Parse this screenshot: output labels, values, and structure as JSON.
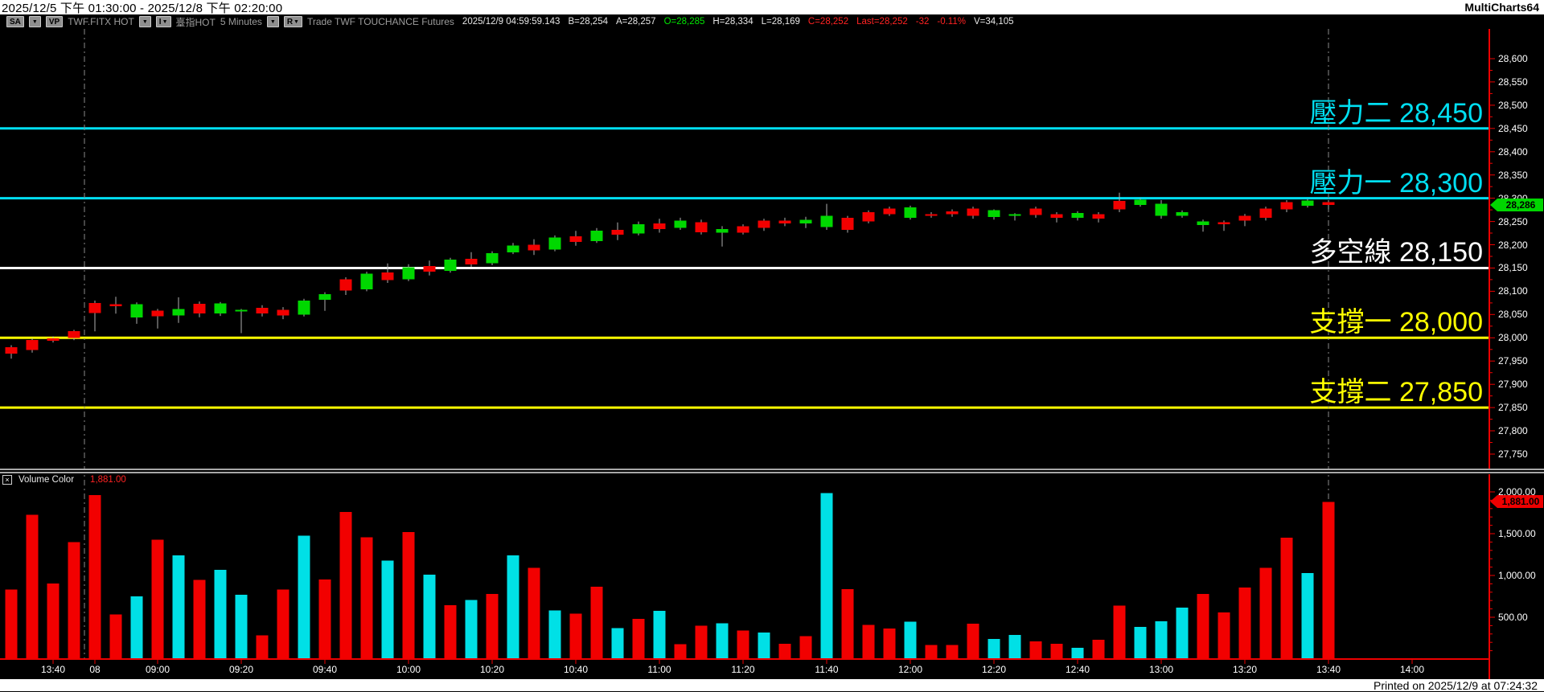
{
  "title_bar": {
    "date_range": "2025/12/5 下午 01:30:00 - 2025/12/8 下午 02:20:00",
    "app_name": "MultiCharts64"
  },
  "toolbar": {
    "sa_button": "SA",
    "vp_button": "VP",
    "symbol": "TWF.FITX HOT",
    "interval_button": "I",
    "series_name": "臺指HOT",
    "interval_text": "5 Minutes",
    "r_button": "R",
    "trade_label": "Trade  TWF  TOUCHANCE  Futures",
    "quote": {
      "datetime": "2025/12/9  04:59:59.143",
      "bid": "B=28,254",
      "ask": "A=28,257",
      "open": "O=28,285",
      "high": "H=28,334",
      "low": "L=28,169",
      "close": "C=28,252",
      "last": "Last=28,252",
      "change": "-32",
      "change_pct": "-0.11%",
      "volume": "V=34,105"
    }
  },
  "price_pane": {
    "levels": [
      {
        "name": "resistance-2",
        "text": "壓力二 28,450",
        "value": 28450,
        "color": "#00dff2"
      },
      {
        "name": "resistance-1",
        "text": "壓力一 28,300",
        "value": 28300,
        "color": "#00dff2"
      },
      {
        "name": "bull-bear-line",
        "text": "多空線 28,150",
        "value": 28150,
        "color": "#ffffff"
      },
      {
        "name": "support-1",
        "text": "支撐一 28,000",
        "value": 28000,
        "color": "#ffff00"
      },
      {
        "name": "support-2",
        "text": "支撐二 27,850",
        "value": 27850,
        "color": "#ffff00"
      }
    ],
    "last_price_badge": {
      "text": "28,286",
      "value": 28286,
      "color": "#00d600"
    },
    "axis_labels": [
      {
        "text": "28,600",
        "value": 28600
      },
      {
        "text": "28,550",
        "value": 28550
      },
      {
        "text": "28,500",
        "value": 28500
      },
      {
        "text": "28,450",
        "value": 28450
      },
      {
        "text": "28,400",
        "value": 28400
      },
      {
        "text": "28,350",
        "value": 28350
      },
      {
        "text": "28,300",
        "value": 28300
      },
      {
        "text": "28,250",
        "value": 28250
      },
      {
        "text": "28,200",
        "value": 28200
      },
      {
        "text": "28,150",
        "value": 28150
      },
      {
        "text": "28,100",
        "value": 28100
      },
      {
        "text": "28,050",
        "value": 28050
      },
      {
        "text": "28,000",
        "value": 28000
      },
      {
        "text": "27,950",
        "value": 27950
      },
      {
        "text": "27,900",
        "value": 27900
      },
      {
        "text": "27,850",
        "value": 27850
      },
      {
        "text": "27,800",
        "value": 27800
      },
      {
        "text": "27,750",
        "value": 27750
      }
    ]
  },
  "volume_pane": {
    "close_icon": "×",
    "title": "Volume Color",
    "value_text": "1,881.00",
    "badge": {
      "text": "1,881.00",
      "value": 1881,
      "color": "#ee0000"
    },
    "axis_labels": [
      {
        "text": "2,000.00",
        "value": 2000
      },
      {
        "text": "1,500.00",
        "value": 1500
      },
      {
        "text": "1,000.00",
        "value": 1000
      },
      {
        "text": "500.00",
        "value": 500
      }
    ]
  },
  "time_axis": {
    "labels": [
      {
        "text": "13:40",
        "slot": 2
      },
      {
        "text": "08",
        "slot": 4
      },
      {
        "text": "09:00",
        "slot": 7
      },
      {
        "text": "09:20",
        "slot": 11
      },
      {
        "text": "09:40",
        "slot": 15
      },
      {
        "text": "10:00",
        "slot": 19
      },
      {
        "text": "10:20",
        "slot": 23
      },
      {
        "text": "10:40",
        "slot": 27
      },
      {
        "text": "11:00",
        "slot": 31
      },
      {
        "text": "11:20",
        "slot": 35
      },
      {
        "text": "11:40",
        "slot": 39
      },
      {
        "text": "12:00",
        "slot": 43
      },
      {
        "text": "12:20",
        "slot": 47
      },
      {
        "text": "12:40",
        "slot": 51
      },
      {
        "text": "13:00",
        "slot": 55
      },
      {
        "text": "13:20",
        "slot": 59
      },
      {
        "text": "13:40",
        "slot": 63
      },
      {
        "text": "14:00",
        "slot": 67
      }
    ]
  },
  "footer": {
    "printed": "Printed on 2025/12/9 at 07:24:32"
  },
  "chart_data": {
    "type": "candlestick+volume",
    "symbol": "TWF.FITX HOT",
    "series_name": "臺指HOT",
    "interval": "5 Minutes",
    "ylim": [
      27750,
      28600
    ],
    "volume_ylim": [
      0,
      2100
    ],
    "legend": "bar format: [time, open, high, low, close, volume, volume_color r=red c=cyan]",
    "session_break_after_bar": 3,
    "session_end_at_last_bar": true,
    "colors": {
      "up": "#00d800",
      "down": "#f20000",
      "vol_red": "#f20000",
      "vol_cyan": "#00e0e6",
      "wick": "#b0b0b0",
      "line_axis": "#ee0000"
    },
    "bars": [
      [
        "13:30",
        27980,
        27984,
        27955,
        27966,
        830,
        "r"
      ],
      [
        "13:35",
        27995,
        27999,
        27968,
        27974,
        1725,
        "r"
      ],
      [
        "13:40",
        27999,
        28003,
        27990,
        27994,
        905,
        "r"
      ],
      [
        "13:45",
        28014,
        28017,
        27995,
        28000,
        1400,
        "r"
      ],
      [
        "08:45",
        28075,
        28080,
        28014,
        28053,
        1960,
        "r"
      ],
      [
        "08:50",
        28072,
        28088,
        28052,
        28068,
        535,
        "r"
      ],
      [
        "08:55",
        28044,
        28076,
        28030,
        28072,
        750,
        "c"
      ],
      [
        "09:00",
        28058,
        28062,
        28020,
        28046,
        1430,
        "r"
      ],
      [
        "09:05",
        28048,
        28087,
        28032,
        28062,
        1240,
        "c"
      ],
      [
        "09:10",
        28073,
        28078,
        28044,
        28052,
        945,
        "r"
      ],
      [
        "09:15",
        28052,
        28077,
        28047,
        28074,
        1065,
        "c"
      ],
      [
        "09:20",
        28058,
        28062,
        28010,
        28060,
        770,
        "c"
      ],
      [
        "09:25",
        28064,
        28070,
        28046,
        28052,
        285,
        "r"
      ],
      [
        "09:30",
        28060,
        28066,
        28040,
        28048,
        830,
        "r"
      ],
      [
        "09:35",
        28050,
        28084,
        28046,
        28080,
        1475,
        "c"
      ],
      [
        "09:40",
        28082,
        28098,
        28058,
        28094,
        950,
        "r"
      ],
      [
        "09:45",
        28126,
        28130,
        28092,
        28102,
        1760,
        "r"
      ],
      [
        "09:50",
        28104,
        28142,
        28100,
        28138,
        1455,
        "r"
      ],
      [
        "09:55",
        28140,
        28160,
        28118,
        28124,
        1180,
        "c"
      ],
      [
        "10:00",
        28126,
        28158,
        28122,
        28152,
        1520,
        "r"
      ],
      [
        "10:05",
        28154,
        28166,
        28134,
        28142,
        1010,
        "c"
      ],
      [
        "10:10",
        28144,
        28172,
        28140,
        28168,
        645,
        "r"
      ],
      [
        "10:15",
        28170,
        28184,
        28152,
        28158,
        705,
        "c"
      ],
      [
        "10:20",
        28160,
        28186,
        28156,
        28182,
        780,
        "r"
      ],
      [
        "10:25",
        28184,
        28204,
        28180,
        28198,
        1240,
        "c"
      ],
      [
        "10:30",
        28200,
        28212,
        28178,
        28188,
        1090,
        "r"
      ],
      [
        "10:35",
        28190,
        28220,
        28186,
        28216,
        580,
        "c"
      ],
      [
        "10:40",
        28218,
        28230,
        28198,
        28206,
        545,
        "r"
      ],
      [
        "10:45",
        28208,
        28236,
        28204,
        28230,
        865,
        "r"
      ],
      [
        "10:50",
        28232,
        28248,
        28210,
        28222,
        370,
        "c"
      ],
      [
        "10:55",
        28224,
        28250,
        28220,
        28244,
        480,
        "r"
      ],
      [
        "11:00",
        28246,
        28256,
        28226,
        28234,
        575,
        "c"
      ],
      [
        "11:05",
        28236,
        28258,
        28232,
        28252,
        180,
        "r"
      ],
      [
        "11:10",
        28248,
        28254,
        28222,
        28227,
        400,
        "r"
      ],
      [
        "11:15",
        28226,
        28240,
        28196,
        28234,
        430,
        "c"
      ],
      [
        "11:20",
        28240,
        28244,
        28222,
        28226,
        340,
        "r"
      ],
      [
        "11:25",
        28252,
        28256,
        28230,
        28236,
        315,
        "c"
      ],
      [
        "11:30",
        28252,
        28258,
        28240,
        28246,
        185,
        "r"
      ],
      [
        "11:35",
        28246,
        28260,
        28236,
        28254,
        275,
        "r"
      ],
      [
        "11:40",
        28238,
        28288,
        28232,
        28262,
        1985,
        "c"
      ],
      [
        "11:45",
        28258,
        28262,
        28226,
        28232,
        835,
        "r"
      ],
      [
        "11:50",
        28270,
        28274,
        28246,
        28250,
        410,
        "r"
      ],
      [
        "11:55",
        28278,
        28282,
        28262,
        28266,
        365,
        "r"
      ],
      [
        "12:00",
        28258,
        28284,
        28254,
        28280,
        445,
        "c"
      ],
      [
        "12:05",
        28266,
        28270,
        28258,
        28264,
        170,
        "r"
      ],
      [
        "12:10",
        28272,
        28276,
        28260,
        28266,
        170,
        "r"
      ],
      [
        "12:15",
        28278,
        28282,
        28256,
        28262,
        425,
        "r"
      ],
      [
        "12:20",
        28260,
        28276,
        28254,
        28274,
        240,
        "c"
      ],
      [
        "12:25",
        28262,
        28268,
        28252,
        28266,
        290,
        "c"
      ],
      [
        "12:30",
        28278,
        28282,
        28258,
        28264,
        210,
        "r"
      ],
      [
        "12:35",
        28266,
        28270,
        28248,
        28258,
        185,
        "r"
      ],
      [
        "12:40",
        28258,
        28272,
        28252,
        28268,
        135,
        "c"
      ],
      [
        "12:45",
        28266,
        28270,
        28248,
        28256,
        230,
        "r"
      ],
      [
        "12:50",
        28294,
        28312,
        28270,
        28276,
        640,
        "r"
      ],
      [
        "12:55",
        28286,
        28300,
        28282,
        28297,
        385,
        "c"
      ],
      [
        "13:00",
        28262,
        28296,
        28256,
        28288,
        450,
        "c"
      ],
      [
        "13:05",
        28262,
        28274,
        28258,
        28270,
        615,
        "c"
      ],
      [
        "13:10",
        28242,
        28254,
        28228,
        28250,
        780,
        "r"
      ],
      [
        "13:15",
        28248,
        28252,
        28230,
        28244,
        560,
        "r"
      ],
      [
        "13:20",
        28262,
        28266,
        28240,
        28252,
        855,
        "r"
      ],
      [
        "13:25",
        28278,
        28282,
        28252,
        28258,
        1090,
        "r"
      ],
      [
        "13:30",
        28292,
        28296,
        28270,
        28276,
        1450,
        "r"
      ],
      [
        "13:35",
        28284,
        28298,
        28280,
        28295,
        1030,
        "c"
      ],
      [
        "13:40",
        28292,
        28296,
        28276,
        28286,
        1881,
        "r"
      ]
    ]
  }
}
